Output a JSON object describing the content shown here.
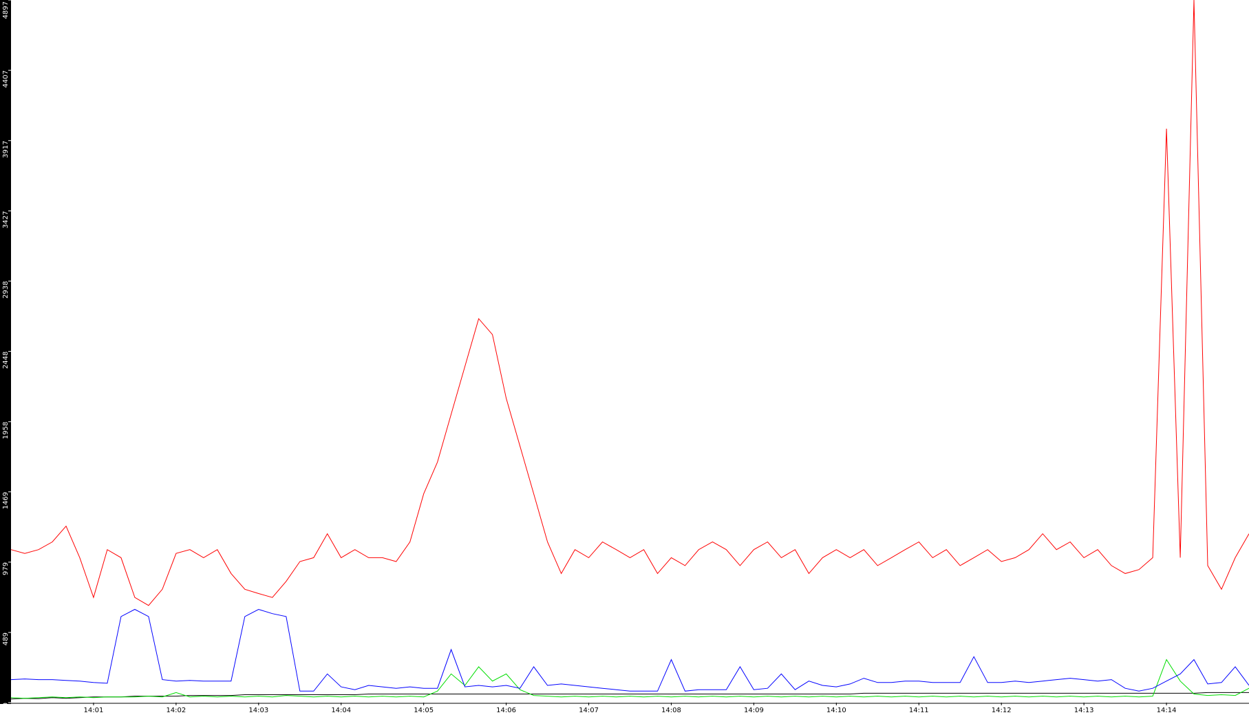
{
  "chart_data": {
    "type": "line",
    "categories": [
      null,
      null,
      null,
      null,
      null,
      null,
      "14:01",
      null,
      null,
      null,
      null,
      null,
      "14:02",
      null,
      null,
      null,
      null,
      null,
      "14:03",
      null,
      null,
      null,
      null,
      null,
      "14:04",
      null,
      null,
      null,
      null,
      null,
      "14:05",
      null,
      null,
      null,
      null,
      null,
      "14:06",
      null,
      null,
      null,
      null,
      null,
      "14:07",
      null,
      null,
      null,
      null,
      null,
      "14:08",
      null,
      null,
      null,
      null,
      null,
      "14:09",
      null,
      null,
      null,
      null,
      null,
      "14:10",
      null,
      null,
      null,
      null,
      null,
      "14:11",
      null,
      null,
      null,
      null,
      null,
      "14:12",
      null,
      null,
      null,
      null,
      null,
      "14:13",
      null,
      null,
      null,
      null,
      null,
      "14:14",
      null,
      null,
      null,
      null,
      null,
      null
    ],
    "series": [
      {
        "color": "#ff0000",
        "values": [
          1066,
          1040,
          1066,
          1120,
          1230,
          1010,
          733,
          1066,
          1010,
          733,
          677,
          790,
          1040,
          1066,
          1010,
          1066,
          900,
          790,
          760,
          733,
          845,
          983,
          1010,
          1177,
          1010,
          1066,
          1010,
          1010,
          983,
          1120,
          1455,
          1677,
          2010,
          2343,
          2676,
          2565,
          2121,
          1788,
          1455,
          1120,
          900,
          1066,
          1010,
          1120,
          1066,
          1010,
          1066,
          900,
          1010,
          955,
          1066,
          1120,
          1066,
          955,
          1066,
          1120,
          1010,
          1066,
          900,
          1010,
          1066,
          1010,
          1066,
          955,
          1010,
          1066,
          1120,
          1010,
          1066,
          955,
          1010,
          1066,
          983,
          1010,
          1066,
          1177,
          1066,
          1120,
          1010,
          1066,
          955,
          900,
          927,
          1010,
          4000,
          1010,
          4897,
          955,
          790,
          1010,
          1177
        ]
      },
      {
        "color": "#0000ff",
        "values": [
          160,
          165,
          160,
          160,
          155,
          150,
          140,
          135,
          600,
          650,
          600,
          160,
          150,
          155,
          150,
          150,
          150,
          600,
          650,
          620,
          600,
          80,
          80,
          200,
          110,
          90,
          120,
          110,
          100,
          110,
          100,
          100,
          370,
          110,
          120,
          110,
          120,
          100,
          250,
          120,
          130,
          120,
          110,
          100,
          90,
          80,
          80,
          80,
          300,
          80,
          90,
          90,
          90,
          250,
          90,
          100,
          200,
          90,
          150,
          120,
          110,
          130,
          170,
          140,
          140,
          150,
          150,
          140,
          140,
          140,
          320,
          140,
          140,
          150,
          140,
          150,
          160,
          170,
          160,
          150,
          160,
          100,
          80,
          100,
          150,
          200,
          300,
          130,
          140,
          250,
          120
        ]
      },
      {
        "color": "#00dd00",
        "values": [
          35,
          30,
          35,
          40,
          35,
          40,
          35,
          40,
          40,
          40,
          45,
          40,
          70,
          40,
          45,
          40,
          45,
          40,
          45,
          40,
          50,
          45,
          40,
          45,
          40,
          45,
          40,
          45,
          40,
          45,
          40,
          80,
          200,
          120,
          250,
          150,
          200,
          90,
          50,
          45,
          40,
          45,
          40,
          45,
          40,
          45,
          40,
          45,
          40,
          45,
          40,
          45,
          40,
          45,
          40,
          45,
          40,
          45,
          40,
          45,
          40,
          45,
          40,
          45,
          40,
          45,
          40,
          45,
          40,
          45,
          40,
          45,
          40,
          45,
          40,
          45,
          40,
          45,
          40,
          45,
          40,
          45,
          40,
          45,
          300,
          150,
          60,
          50,
          55,
          50,
          100
        ]
      },
      {
        "color": "#000000",
        "values": [
          25,
          30,
          28,
          35,
          30,
          35,
          40,
          40,
          40,
          45,
          45,
          45,
          45,
          50,
          50,
          50,
          50,
          55,
          55,
          55,
          55,
          55,
          55,
          55,
          55,
          55,
          60,
          60,
          60,
          60,
          60,
          60,
          60,
          60,
          60,
          60,
          60,
          60,
          60,
          60,
          60,
          60,
          60,
          60,
          60,
          60,
          60,
          60,
          60,
          60,
          60,
          60,
          60,
          60,
          60,
          60,
          60,
          60,
          60,
          60,
          60,
          60,
          65,
          65,
          65,
          65,
          65,
          65,
          65,
          65,
          65,
          65,
          65,
          65,
          65,
          65,
          65,
          65,
          65,
          65,
          65,
          65,
          65,
          65,
          65,
          65,
          65,
          70,
          70,
          70,
          70
        ]
      }
    ],
    "ylim": [
      0,
      4897
    ],
    "yticks": [
      0,
      489,
      979,
      1469,
      1958,
      2448,
      2938,
      3427,
      3917,
      4407,
      4897
    ]
  }
}
